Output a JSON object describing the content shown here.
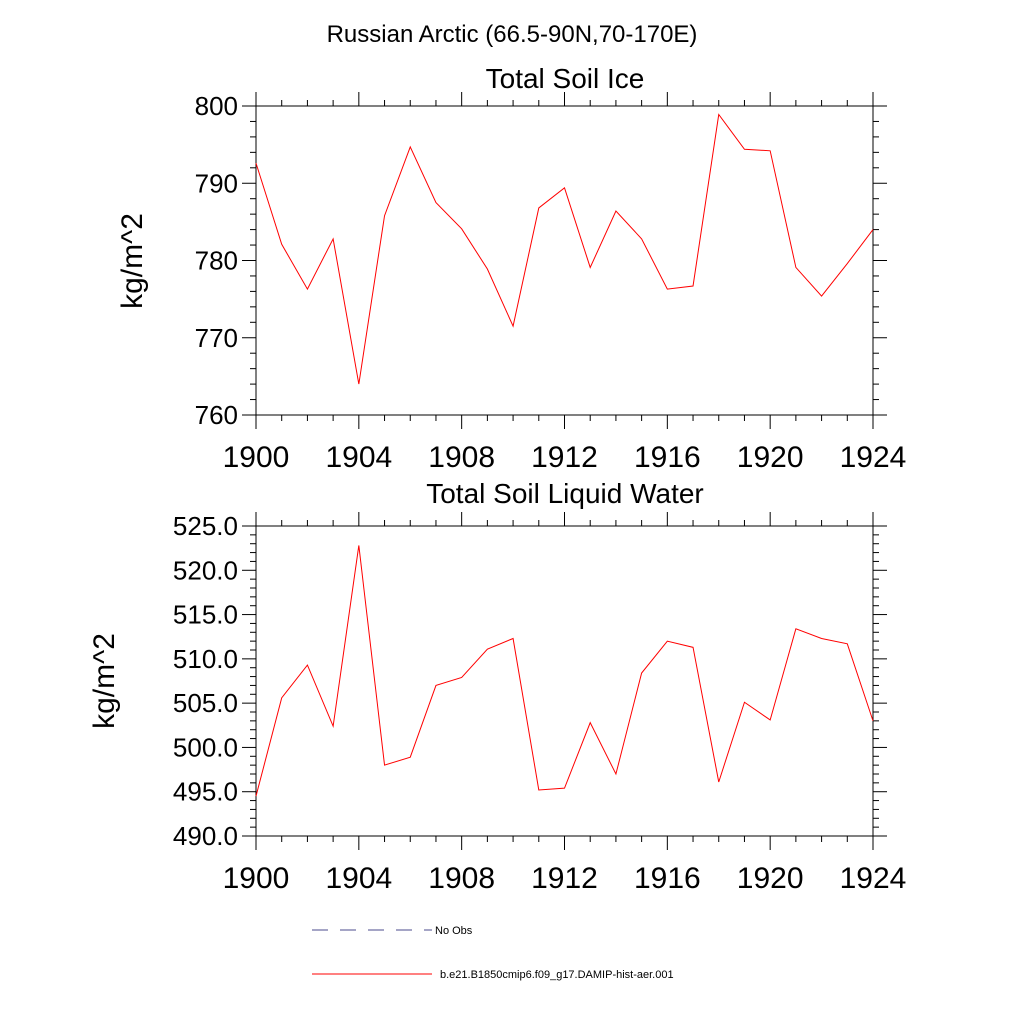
{
  "title": "Russian Arctic (66.5-90N,70-170E)",
  "legend": {
    "items": [
      {
        "label": "No Obs",
        "color": "#4b4b8c",
        "dash": true
      },
      {
        "label": "b.e21.B1850cmip6.f09_g17.DAMIP-hist-aer.001",
        "color": "#ff0000",
        "dash": false
      }
    ]
  },
  "chart_data": [
    {
      "type": "line",
      "title": "Total Soil Ice",
      "xlabel": "",
      "ylabel": "kg/m^2",
      "xlim": [
        1900,
        1924
      ],
      "ylim": [
        760,
        800
      ],
      "x_ticks": [
        1900,
        1904,
        1908,
        1912,
        1916,
        1920,
        1924
      ],
      "y_ticks": [
        760,
        770,
        780,
        790,
        800
      ],
      "y_tick_labels": [
        "760",
        "770",
        "780",
        "790",
        "800"
      ],
      "grid": false,
      "series": [
        {
          "name": "b.e21.B1850cmip6.f09_g17.DAMIP-hist-aer.001",
          "color": "#ff0000",
          "x": [
            1900,
            1901,
            1902,
            1903,
            1904,
            1905,
            1906,
            1907,
            1908,
            1909,
            1910,
            1911,
            1912,
            1913,
            1914,
            1915,
            1916,
            1917,
            1918,
            1919,
            1920,
            1921,
            1922,
            1923,
            1924
          ],
          "values": [
            792.6,
            782.1,
            776.3,
            782.8,
            764.0,
            785.8,
            794.7,
            787.5,
            784.1,
            778.9,
            771.5,
            786.8,
            789.4,
            779.1,
            786.4,
            782.8,
            776.3,
            776.7,
            798.9,
            794.4,
            794.2,
            779.1,
            775.4,
            779.6,
            784.0
          ]
        }
      ]
    },
    {
      "type": "line",
      "title": "Total Soil Liquid Water",
      "xlabel": "",
      "ylabel": "kg/m^2",
      "xlim": [
        1900,
        1924
      ],
      "ylim": [
        490,
        525
      ],
      "x_ticks": [
        1900,
        1904,
        1908,
        1912,
        1916,
        1920,
        1924
      ],
      "y_ticks": [
        490,
        495,
        500,
        505,
        510,
        515,
        520,
        525
      ],
      "y_tick_labels": [
        "490.0",
        "495.0",
        "500.0",
        "505.0",
        "510.0",
        "515.0",
        "520.0",
        "525.0"
      ],
      "grid": false,
      "series": [
        {
          "name": "b.e21.B1850cmip6.f09_g17.DAMIP-hist-aer.001",
          "color": "#ff0000",
          "x": [
            1900,
            1901,
            1902,
            1903,
            1904,
            1905,
            1906,
            1907,
            1908,
            1909,
            1910,
            1911,
            1912,
            1913,
            1914,
            1915,
            1916,
            1917,
            1918,
            1919,
            1920,
            1921,
            1922,
            1923,
            1924
          ],
          "values": [
            494.5,
            505.6,
            509.3,
            502.4,
            522.8,
            498.0,
            498.9,
            507.0,
            507.9,
            511.1,
            512.3,
            495.2,
            495.4,
            502.8,
            497.0,
            508.4,
            512.0,
            511.3,
            496.1,
            505.1,
            503.1,
            513.4,
            512.3,
            511.7,
            503.0
          ]
        }
      ]
    }
  ]
}
